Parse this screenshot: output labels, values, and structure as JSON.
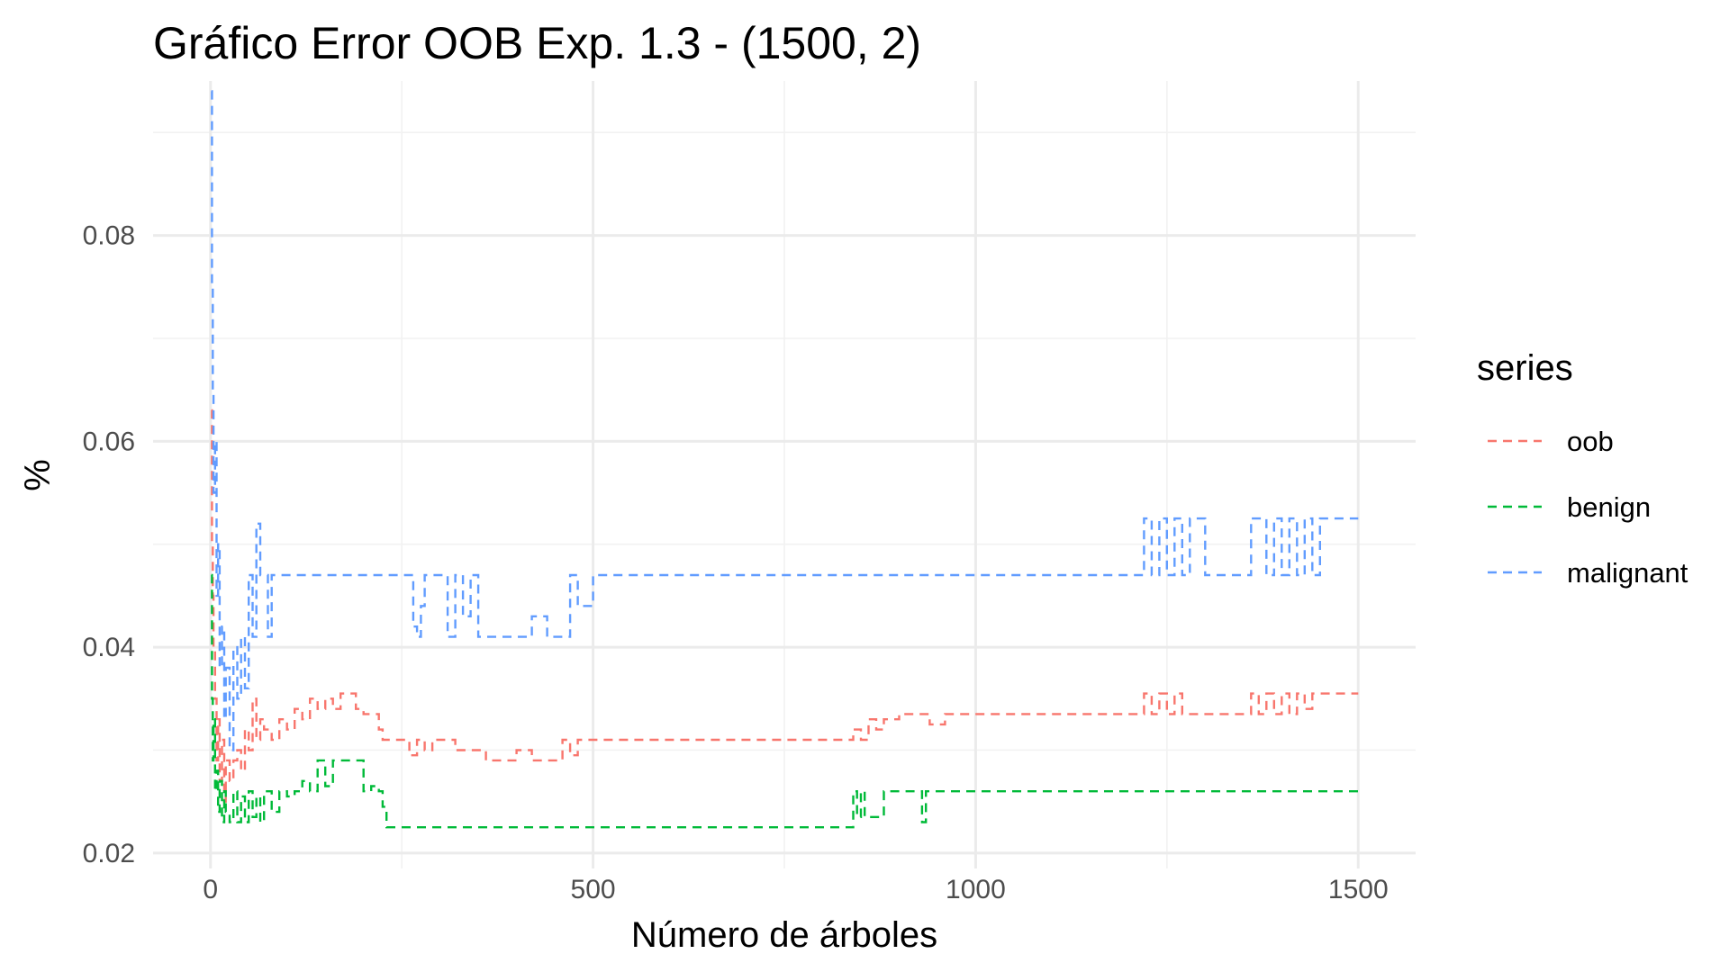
{
  "chart_data": {
    "type": "line",
    "title": "Gráfico Error OOB Exp. 1.3 - (1500, 2)",
    "xlabel": "Número de árboles",
    "ylabel": "%",
    "xlim": [
      -75,
      1575
    ],
    "ylim": [
      0.0185,
      0.095
    ],
    "x_ticks": [
      0,
      500,
      1000,
      1500
    ],
    "x_tick_labels": [
      "0",
      "500",
      "1000",
      "1500"
    ],
    "y_ticks": [
      0.02,
      0.04,
      0.06,
      0.08
    ],
    "y_tick_labels": [
      "0.02",
      "0.04",
      "0.06",
      "0.08"
    ],
    "grid": true,
    "legend": {
      "title": "series",
      "position": "right"
    },
    "series": [
      {
        "name": "oob",
        "color": "#f8766d",
        "x": [
          1,
          2,
          3,
          4,
          6,
          8,
          10,
          12,
          15,
          18,
          20,
          25,
          30,
          35,
          40,
          45,
          50,
          55,
          60,
          65,
          70,
          80,
          90,
          100,
          110,
          120,
          130,
          140,
          150,
          160,
          170,
          180,
          190,
          200,
          210,
          220,
          225,
          230,
          240,
          250,
          260,
          270,
          280,
          290,
          300,
          320,
          340,
          360,
          380,
          400,
          420,
          440,
          460,
          470,
          480,
          500,
          520,
          600,
          700,
          800,
          840,
          850,
          860,
          870,
          880,
          900,
          940,
          960,
          1000,
          1100,
          1200,
          1220,
          1230,
          1240,
          1250,
          1260,
          1270,
          1280,
          1300,
          1350,
          1360,
          1370,
          1380,
          1390,
          1400,
          1410,
          1420,
          1430,
          1440,
          1450,
          1460,
          1470,
          1480,
          1490,
          1500
        ],
        "values": [
          0.063,
          0.05,
          0.045,
          0.04,
          0.035,
          0.029,
          0.033,
          0.027,
          0.031,
          0.025,
          0.029,
          0.027,
          0.029,
          0.03,
          0.028,
          0.032,
          0.03,
          0.035,
          0.031,
          0.033,
          0.032,
          0.031,
          0.033,
          0.032,
          0.034,
          0.033,
          0.035,
          0.034,
          0.035,
          0.034,
          0.0355,
          0.0355,
          0.034,
          0.0335,
          0.0335,
          0.032,
          0.031,
          0.031,
          0.031,
          0.031,
          0.0295,
          0.031,
          0.03,
          0.031,
          0.031,
          0.03,
          0.03,
          0.029,
          0.029,
          0.03,
          0.029,
          0.029,
          0.031,
          0.0295,
          0.031,
          0.031,
          0.031,
          0.031,
          0.031,
          0.031,
          0.032,
          0.031,
          0.033,
          0.032,
          0.033,
          0.0335,
          0.0325,
          0.0335,
          0.0335,
          0.0335,
          0.0335,
          0.0355,
          0.0335,
          0.0355,
          0.0335,
          0.0355,
          0.0335,
          0.0335,
          0.0335,
          0.0335,
          0.0355,
          0.0335,
          0.0355,
          0.0335,
          0.0355,
          0.0335,
          0.0355,
          0.034,
          0.0355,
          0.0355,
          0.0355,
          0.0355,
          0.0355,
          0.0355,
          0.0355
        ]
      },
      {
        "name": "benign",
        "color": "#00ba38",
        "x": [
          1,
          2,
          3,
          4,
          6,
          8,
          10,
          12,
          15,
          18,
          20,
          25,
          30,
          35,
          40,
          45,
          50,
          55,
          60,
          65,
          70,
          80,
          90,
          100,
          110,
          120,
          130,
          140,
          150,
          160,
          170,
          180,
          190,
          200,
          210,
          220,
          225,
          230,
          240,
          260,
          300,
          400,
          500,
          600,
          700,
          800,
          840,
          845,
          850,
          855,
          860,
          870,
          880,
          900,
          930,
          935,
          940,
          1000,
          1200,
          1400,
          1500
        ],
        "values": [
          0.047,
          0.035,
          0.029,
          0.033,
          0.026,
          0.028,
          0.024,
          0.027,
          0.023,
          0.026,
          0.024,
          0.023,
          0.026,
          0.023,
          0.0255,
          0.023,
          0.026,
          0.0235,
          0.0255,
          0.023,
          0.026,
          0.024,
          0.026,
          0.0255,
          0.026,
          0.027,
          0.026,
          0.029,
          0.0265,
          0.029,
          0.029,
          0.029,
          0.029,
          0.026,
          0.0265,
          0.026,
          0.0245,
          0.0225,
          0.0225,
          0.0225,
          0.0225,
          0.0225,
          0.0225,
          0.0225,
          0.0225,
          0.0225,
          0.026,
          0.0235,
          0.026,
          0.0235,
          0.0235,
          0.0235,
          0.026,
          0.026,
          0.023,
          0.026,
          0.026,
          0.026,
          0.026,
          0.026,
          0.026
        ]
      },
      {
        "name": "malignant",
        "color": "#619cff",
        "x": [
          1,
          2,
          3,
          4,
          6,
          8,
          10,
          12,
          15,
          18,
          20,
          25,
          30,
          35,
          40,
          45,
          50,
          55,
          60,
          65,
          70,
          75,
          80,
          100,
          200,
          260,
          265,
          270,
          275,
          280,
          300,
          310,
          320,
          330,
          340,
          350,
          380,
          400,
          420,
          440,
          460,
          470,
          480,
          500,
          600,
          800,
          1000,
          1200,
          1220,
          1230,
          1240,
          1250,
          1260,
          1270,
          1280,
          1300,
          1350,
          1360,
          1370,
          1380,
          1390,
          1400,
          1410,
          1420,
          1430,
          1440,
          1450,
          1460,
          1500
        ],
        "values": [
          0.094,
          0.075,
          0.065,
          0.055,
          0.06,
          0.045,
          0.05,
          0.038,
          0.042,
          0.033,
          0.038,
          0.03,
          0.04,
          0.035,
          0.041,
          0.036,
          0.047,
          0.041,
          0.052,
          0.047,
          0.047,
          0.041,
          0.047,
          0.047,
          0.047,
          0.047,
          0.042,
          0.041,
          0.044,
          0.047,
          0.047,
          0.041,
          0.047,
          0.043,
          0.047,
          0.041,
          0.041,
          0.041,
          0.043,
          0.041,
          0.041,
          0.047,
          0.044,
          0.047,
          0.047,
          0.047,
          0.047,
          0.047,
          0.0525,
          0.047,
          0.0525,
          0.047,
          0.0525,
          0.047,
          0.0525,
          0.047,
          0.047,
          0.0525,
          0.0525,
          0.047,
          0.0525,
          0.047,
          0.0525,
          0.047,
          0.0525,
          0.047,
          0.0525,
          0.0525,
          0.0525
        ]
      }
    ]
  }
}
